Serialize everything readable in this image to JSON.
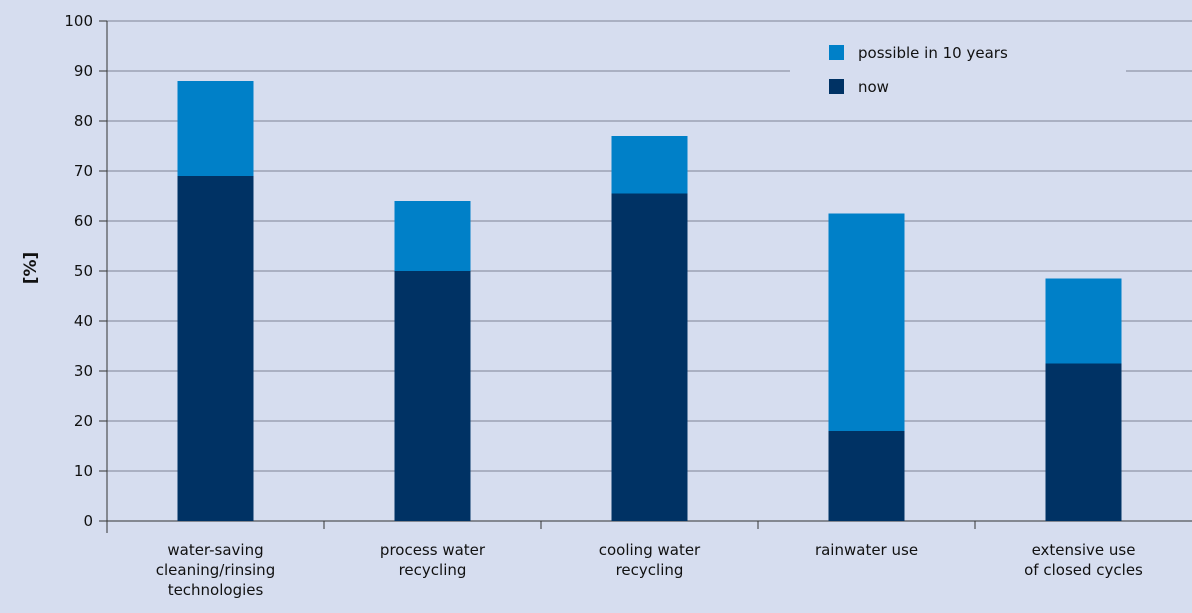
{
  "chart_data": {
    "type": "bar",
    "stacked": true,
    "title": "",
    "xlabel": "",
    "ylabel": "[%]",
    "ylim": [
      0,
      100
    ],
    "yticks": [
      0,
      10,
      20,
      30,
      40,
      50,
      60,
      70,
      80,
      90,
      100
    ],
    "grid": true,
    "legend_position": "top-right",
    "categories": [
      [
        "water-saving",
        "cleaning/rinsing",
        "technologies"
      ],
      [
        "process water",
        "recycling"
      ],
      [
        "cooling water",
        "recycling"
      ],
      [
        "rainwater use"
      ],
      [
        "extensive use",
        "of closed cycles"
      ]
    ],
    "series": [
      {
        "name": "now",
        "color": "#003264",
        "values": [
          69,
          50,
          65.5,
          18,
          31.5
        ]
      },
      {
        "name": "possible in 10 years",
        "color": "#0080c8",
        "values": [
          19,
          14,
          11.5,
          43.5,
          17
        ]
      }
    ]
  }
}
